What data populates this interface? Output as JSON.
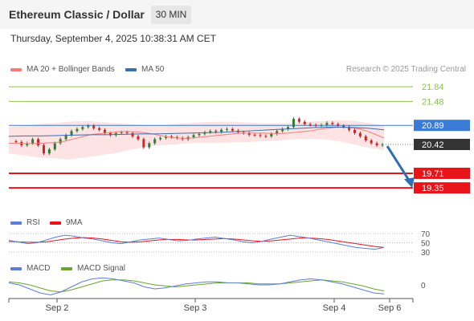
{
  "header": {
    "title": "Ethereum Classic / Dollar",
    "timeframe": "30 MIN",
    "datetime": "Thursday, September 4, 2025 10:38:31 AM CET"
  },
  "legend": {
    "ma20": "MA 20 + Bollinger Bands",
    "ma50": "MA 50",
    "credit": "Research © 2025 Trading Central",
    "rsi": "RSI",
    "rsi_ma": "9MA",
    "macd": "MACD",
    "macd_signal": "MACD Signal"
  },
  "colors": {
    "resistance": "#8bc34a",
    "pivot": "#3a7bd5",
    "support": "#e8141a",
    "current": "#333333",
    "ma20": "#f47c7c",
    "ma50": "#3a6fb0",
    "bollinger_fill": "#fde3e3",
    "candle_up": "#2e7d32",
    "candle_down": "#c62828",
    "arrow": "#2f6db5",
    "rsi": "#5b7fd6",
    "rsi_ma": "#e8141a",
    "macd": "#5b7fd6",
    "macd_signal": "#6aa62a"
  },
  "chart_data": {
    "type": "line",
    "y_range": [
      18.8,
      22.1
    ],
    "x_ticks": [
      "Sep 2",
      "Sep 3",
      "Sep 4",
      "Sep 6"
    ],
    "levels": [
      {
        "label": "21.84",
        "value": 21.84,
        "kind": "resistance"
      },
      {
        "label": "21.48",
        "value": 21.48,
        "kind": "resistance"
      },
      {
        "label": "20.89",
        "value": 20.89,
        "kind": "pivot"
      },
      {
        "label": "20.42",
        "value": 20.42,
        "kind": "current"
      },
      {
        "label": "19.71",
        "value": 19.71,
        "kind": "support"
      },
      {
        "label": "19.35",
        "value": 19.35,
        "kind": "support"
      }
    ],
    "price_series": [
      20.5,
      20.48,
      20.4,
      20.45,
      20.55,
      20.4,
      20.2,
      20.3,
      20.45,
      20.55,
      20.65,
      20.75,
      20.8,
      20.85,
      20.88,
      20.82,
      20.78,
      20.7,
      20.65,
      20.7,
      20.72,
      20.7,
      20.62,
      20.55,
      20.35,
      20.45,
      20.55,
      20.58,
      20.62,
      20.6,
      20.58,
      20.55,
      20.6,
      20.65,
      20.68,
      20.72,
      20.75,
      20.73,
      20.78,
      20.8,
      20.76,
      20.72,
      20.7,
      20.66,
      20.65,
      20.63,
      20.62,
      20.68,
      20.75,
      20.8,
      20.85,
      21.05,
      20.98,
      20.92,
      20.9,
      20.88,
      20.9,
      20.95,
      20.92,
      20.88,
      20.85,
      20.78,
      20.7,
      20.62,
      20.52,
      20.45,
      20.4,
      20.42
    ],
    "ma20_series": [
      20.45,
      20.45,
      20.44,
      20.44,
      20.45,
      20.46,
      20.47,
      20.5,
      20.55,
      20.6,
      20.65,
      20.68,
      20.7,
      20.72,
      20.74,
      20.74,
      20.73,
      20.71,
      20.68,
      20.64,
      20.6,
      20.58,
      20.57,
      20.58,
      20.6,
      20.62,
      20.64,
      20.66,
      20.68,
      20.7,
      20.7,
      20.7,
      20.7,
      20.69,
      20.69,
      20.7,
      20.72,
      20.74,
      20.76,
      20.8,
      20.82,
      20.84,
      20.84,
      20.83,
      20.8,
      20.74,
      20.66,
      20.58
    ],
    "ma50_series": [
      20.62,
      20.63,
      20.63,
      20.64,
      20.65,
      20.66,
      20.66,
      20.67,
      20.68,
      20.68,
      20.69,
      20.7,
      20.71,
      20.72,
      20.74,
      20.76,
      20.78,
      20.8,
      20.82,
      20.84,
      20.85,
      20.84,
      20.82,
      20.78
    ],
    "bb_upper": [
      20.85,
      20.88,
      20.92,
      20.95,
      20.98,
      21.0,
      20.98,
      20.95,
      20.92,
      20.9,
      20.88,
      20.92,
      20.95,
      20.97,
      20.98,
      20.98,
      20.96,
      20.94,
      20.94,
      20.95,
      20.98,
      21.0,
      21.02,
      21.0,
      20.95,
      20.88
    ],
    "bb_lower": [
      20.2,
      20.15,
      20.1,
      20.08,
      20.05,
      20.1,
      20.15,
      20.2,
      20.28,
      20.35,
      20.4,
      20.42,
      20.45,
      20.46,
      20.46,
      20.47,
      20.48,
      20.5,
      20.52,
      20.55,
      20.56,
      20.55,
      20.5,
      20.42,
      20.34,
      20.28
    ],
    "forecast_target": 19.35,
    "rsi": {
      "levels": [
        70,
        50,
        30
      ],
      "y_range": [
        20,
        80
      ],
      "rsi_series": [
        55,
        52,
        48,
        50,
        56,
        62,
        66,
        64,
        60,
        58,
        54,
        50,
        48,
        52,
        56,
        58,
        60,
        57,
        54,
        55,
        58,
        60,
        62,
        59,
        56,
        52,
        50,
        53,
        58,
        62,
        66,
        63,
        60,
        56,
        52,
        48,
        44,
        40,
        38,
        36,
        40
      ],
      "ma_series": [
        53,
        52,
        51,
        51,
        52,
        55,
        58,
        60,
        61,
        60,
        58,
        55,
        52,
        51,
        52,
        54,
        56,
        57,
        57,
        56,
        56,
        57,
        58,
        59,
        58,
        56,
        54,
        53,
        54,
        56,
        58,
        60,
        60,
        59,
        57,
        54,
        51,
        48,
        45,
        42,
        40
      ]
    },
    "macd": {
      "zero_label": "0",
      "y_range": [
        -0.16,
        0.16
      ],
      "macd_series": [
        0.02,
        0.0,
        -0.04,
        -0.08,
        -0.1,
        -0.07,
        -0.02,
        0.03,
        0.06,
        0.07,
        0.06,
        0.04,
        0.02,
        -0.02,
        -0.04,
        -0.03,
        -0.01,
        0.01,
        0.02,
        0.03,
        0.03,
        0.02,
        0.02,
        0.01,
        0.0,
        0.0,
        0.01,
        0.03,
        0.05,
        0.06,
        0.05,
        0.03,
        0.01,
        -0.02,
        -0.05,
        -0.08,
        -0.09
      ],
      "signal_series": [
        0.03,
        0.02,
        0.0,
        -0.03,
        -0.06,
        -0.07,
        -0.05,
        -0.02,
        0.01,
        0.04,
        0.05,
        0.05,
        0.04,
        0.02,
        0.0,
        -0.01,
        -0.02,
        -0.01,
        0.0,
        0.01,
        0.02,
        0.02,
        0.02,
        0.02,
        0.01,
        0.01,
        0.01,
        0.02,
        0.03,
        0.04,
        0.05,
        0.04,
        0.03,
        0.01,
        -0.01,
        -0.04,
        -0.06
      ]
    }
  }
}
